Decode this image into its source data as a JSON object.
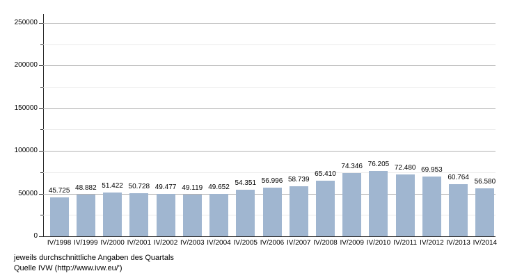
{
  "chart_data": {
    "type": "bar",
    "title": "",
    "xlabel": "",
    "ylabel": "",
    "categories": [
      "IV/1998",
      "IV/1999",
      "IV/2000",
      "IV/2001",
      "IV/2002",
      "IV/2003",
      "IV/2004",
      "IV/2005",
      "IV/2006",
      "IV/2007",
      "IV/2008",
      "IV/2009",
      "IV/2010",
      "IV/2011",
      "IV/2012",
      "IV/2013",
      "IV/2014"
    ],
    "values": [
      45725,
      48882,
      51422,
      50728,
      49477,
      49119,
      49652,
      54351,
      56996,
      58739,
      65410,
      74346,
      76205,
      72480,
      69953,
      60764,
      56580
    ],
    "value_labels": [
      "45.725",
      "48.882",
      "51.422",
      "50.728",
      "49.477",
      "49.119",
      "49.652",
      "54.351",
      "56.996",
      "58.739",
      "65.410",
      "74.346",
      "76.205",
      "72.480",
      "69.953",
      "60.764",
      "56.580"
    ],
    "ylim": [
      0,
      250000
    ],
    "y_major_tick_step": 50000,
    "y_minor_tick_step": 25000,
    "y_tick_labels": [
      "0",
      "50000",
      "100000",
      "150000",
      "200000",
      "250000"
    ],
    "grid": "horizontal major and minor gridlines",
    "legend": "none",
    "bar_color": "#a0b6d0",
    "annotations": [
      "jeweils durchschnittliche Angaben des Quartals",
      "Quelle IVW (http://www.ivw.eu/')"
    ]
  }
}
